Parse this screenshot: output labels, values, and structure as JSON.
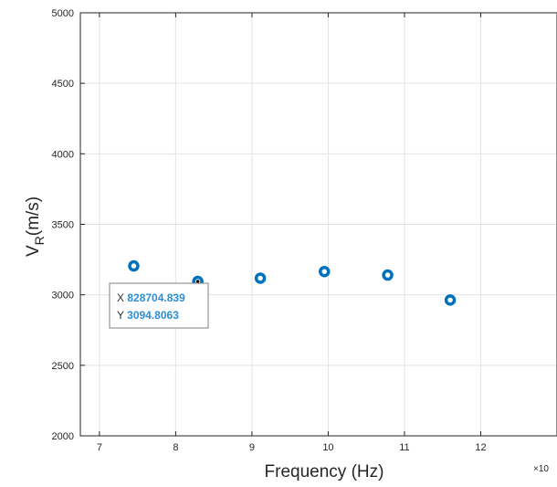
{
  "chart_data": {
    "type": "scatter",
    "title": "",
    "xlabel": "Frequency (Hz)",
    "ylabel_main": "V",
    "ylabel_sub": "R",
    "ylabel_rest": "(m/s)",
    "x_exponent_label": "×10",
    "xlim": [
      6.75,
      13.0
    ],
    "ylim": [
      2000,
      5000
    ],
    "x_ticks": [
      7,
      8,
      9,
      10,
      11,
      12
    ],
    "y_ticks": [
      2000,
      2500,
      3000,
      3500,
      4000,
      4500,
      5000
    ],
    "grid": true,
    "marker_color": "#0072BD",
    "x": [
      7.45,
      8.29,
      9.11,
      9.95,
      10.78,
      11.6
    ],
    "y": [
      3205,
      3094.8063,
      3118,
      3165,
      3140,
      2963
    ]
  },
  "datatip": {
    "x_label": "X",
    "x_value": "828704.839",
    "y_label": "Y",
    "y_value": "3094.8063",
    "point_index": 1
  }
}
